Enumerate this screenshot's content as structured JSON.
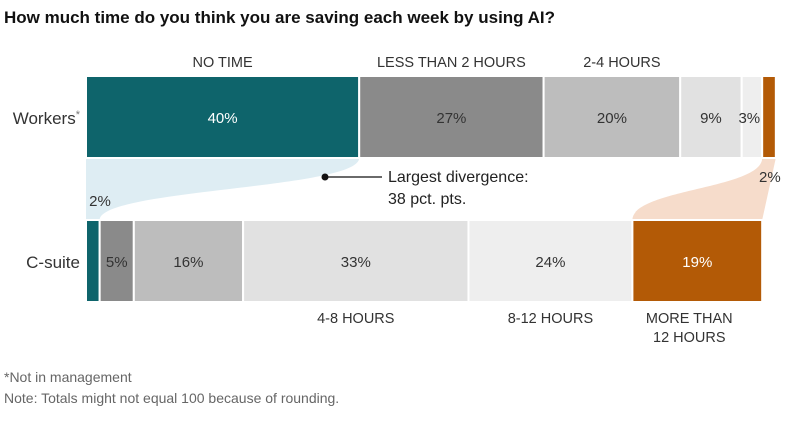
{
  "title": "How much time do you think you are saving each week by using AI?",
  "chart_data": {
    "type": "bar",
    "orientation": "horizontal",
    "stacked": true,
    "xlim": [
      0,
      100
    ],
    "categories": [
      "NO TIME",
      "LESS THAN 2 HOURS",
      "2-4 HOURS",
      "4-8 HOURS",
      "8-12 HOURS",
      "MORE THAN 12 HOURS"
    ],
    "category_colors": [
      "#0e646b",
      "#8a8a8a",
      "#bdbdbd",
      "#e1e1e1",
      "#eeeeee",
      "#b35a06"
    ],
    "series": [
      {
        "name": "Workers",
        "name_marker": "*",
        "values": [
          40,
          27,
          20,
          9,
          3,
          2
        ]
      },
      {
        "name": "C-suite",
        "values": [
          2,
          5,
          16,
          33,
          24,
          19
        ]
      }
    ],
    "value_labels": {
      "Workers": [
        "40%",
        "27%",
        "20%",
        "9%",
        "3%",
        "2%"
      ],
      "C-suite": [
        "2%",
        "5%",
        "16%",
        "33%",
        "24%",
        "19%"
      ]
    },
    "annotation": {
      "lines": [
        "Largest divergence:",
        "38 pct. pts."
      ]
    }
  },
  "footnotes": {
    "note1": "*Not in management",
    "note2": "Note: Totals might not equal 100 because of rounding."
  }
}
